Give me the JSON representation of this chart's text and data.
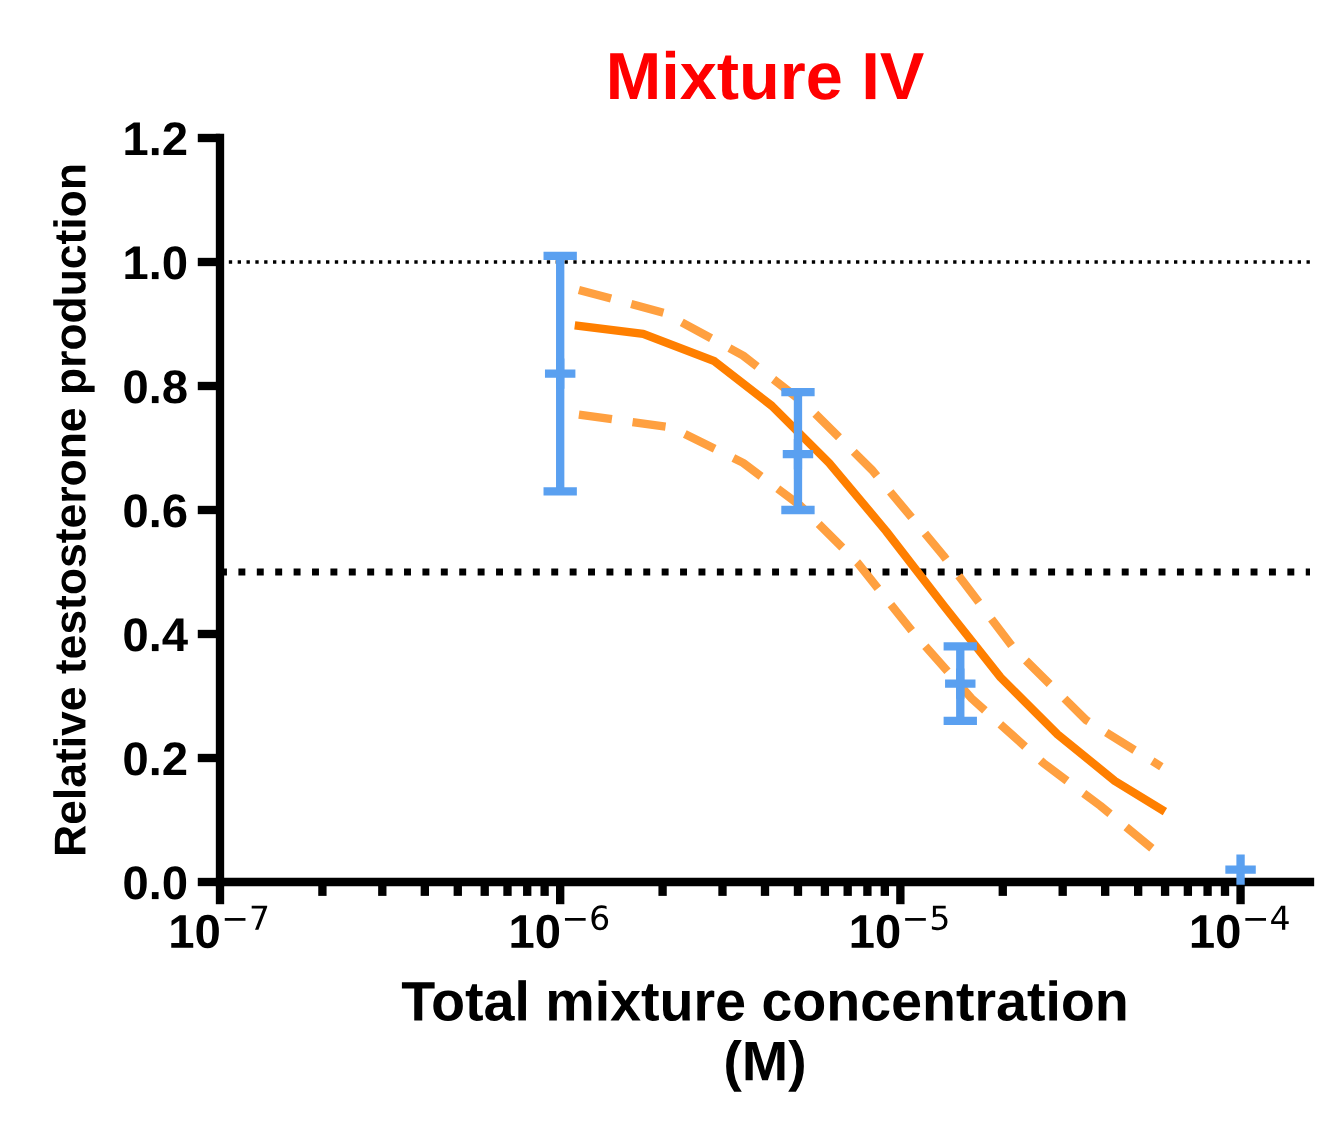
{
  "chart_data": {
    "type": "scatter",
    "title": "Mixture IV",
    "xlabel": "Total mixture concentration\n(M)",
    "ylabel": "Relative testosterone production",
    "log": "x",
    "xlim": [
      1e-07,
      0.00016
    ],
    "xticks": [
      {
        "value": 1e-07,
        "label": "10$^{−7}$"
      },
      {
        "value": 1e-06,
        "label": "10$^{−6}$"
      },
      {
        "value": 1e-05,
        "label": "10$^{−5}$"
      },
      {
        "value": 0.0001,
        "label": "10$^{−4}$"
      }
    ],
    "ylim": [
      0,
      1.2
    ],
    "yticks": [
      {
        "value": 0,
        "label": "0.0"
      },
      0.2,
      0.4,
      0.6,
      0.8,
      {
        "value": 1,
        "label": "1.0"
      },
      1.2
    ],
    "grid": false,
    "legend": false,
    "series": [
      {
        "type": "line",
        "color": "#ff7f00",
        "line_style": "solid",
        "marker": "none",
        "x": [
          1.135e-06,
          1.754e-06,
          2.84e-06,
          4.19e-06,
          6.17e-06,
          9.08e-06,
          1.34e-05,
          1.97e-05,
          2.9e-05,
          4.27e-05,
          5.85e-05
        ],
        "values": [
          0.897,
          0.884,
          0.84,
          0.768,
          0.676,
          0.566,
          0.446,
          0.33,
          0.238,
          0.163,
          0.117
        ]
      },
      {
        "type": "line",
        "color": "#ffa040",
        "line_style": "dashed",
        "marker": "none",
        "x": [
          1.135e-06,
          2.02e-06,
          3.45e-06,
          5.33e-06,
          8.24e-06,
          1.34e-05,
          2.16e-05,
          3.52e-05,
          5.85e-05
        ],
        "values": [
          0.955,
          0.918,
          0.849,
          0.768,
          0.665,
          0.526,
          0.376,
          0.261,
          0.186
        ]
      },
      {
        "type": "line",
        "color": "#ffa040",
        "line_style": "dashed",
        "marker": "none",
        "x": [
          1.135e-06,
          2.13e-06,
          3.45e-06,
          5.08e-06,
          7.48e-06,
          1.1e-05,
          1.62e-05,
          2.63e-05,
          3.87e-05,
          5.85e-05
        ],
        "values": [
          0.754,
          0.733,
          0.676,
          0.607,
          0.515,
          0.4,
          0.296,
          0.192,
          0.123,
          0.042
        ]
      },
      {
        "color": "#5aa0f0",
        "marker": "cross",
        "x": [
          1e-06,
          5e-06,
          1.5e-05,
          0.0001
        ],
        "values": [
          0.82,
          0.69,
          0.32,
          0.02
        ],
        "errors": [
          [
            0.63,
            1.01
          ],
          [
            0.6,
            0.79
          ],
          [
            0.26,
            0.38
          ],
          null
        ]
      }
    ],
    "ref_lines": [
      {
        "axis": "y",
        "value": 1,
        "label": null,
        "color": "#000000",
        "line_style": "dotted"
      },
      {
        "axis": "y",
        "value": 0.5,
        "label": null,
        "color": "#000000",
        "line_style": "dotted"
      }
    ]
  }
}
